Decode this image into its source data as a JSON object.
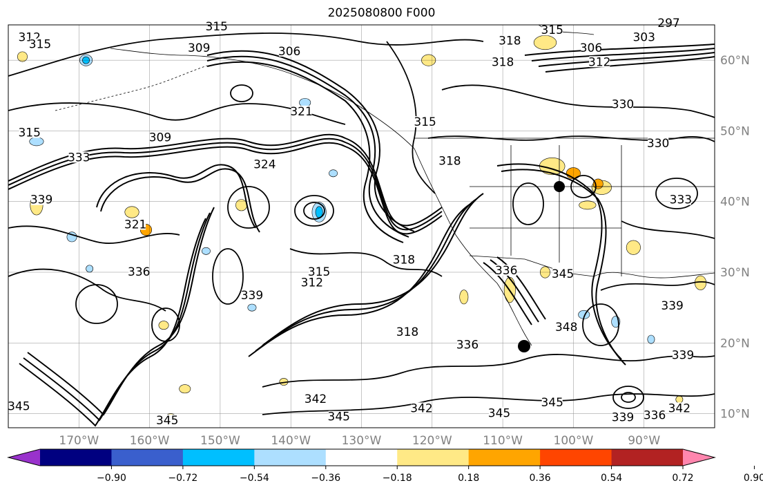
{
  "title": "2025080800 F000",
  "map": {
    "extent": {
      "lon": [
        -180,
        -80
      ],
      "lat": [
        8,
        65
      ]
    },
    "grid": true,
    "lat_labels": [
      "60°N",
      "50°N",
      "40°N",
      "30°N",
      "20°N",
      "10°N"
    ],
    "lat_values": [
      60,
      50,
      40,
      30,
      20,
      10
    ],
    "lon_labels": [
      "170°W",
      "160°W",
      "150°W",
      "140°W",
      "130°W",
      "120°W",
      "110°W",
      "100°W",
      "90°W"
    ],
    "lon_values": [
      -170,
      -160,
      -150,
      -140,
      -130,
      -120,
      -110,
      -100,
      -90
    ],
    "contour_labels": [
      {
        "text": "312",
        "lon": -177.0,
        "lat": 63.0
      },
      {
        "text": "315",
        "lon": -175.5,
        "lat": 62.0
      },
      {
        "text": "315",
        "lon": -150.5,
        "lat": 64.5
      },
      {
        "text": "309",
        "lon": -153.0,
        "lat": 61.5
      },
      {
        "text": "306",
        "lon": -140.2,
        "lat": 61.0
      },
      {
        "text": "321",
        "lon": -138.5,
        "lat": 52.5
      },
      {
        "text": "309",
        "lon": -158.5,
        "lat": 48.8
      },
      {
        "text": "315",
        "lon": -177.0,
        "lat": 49.5
      },
      {
        "text": "333",
        "lon": -170.0,
        "lat": 46.0
      },
      {
        "text": "324",
        "lon": -143.7,
        "lat": 45.0
      },
      {
        "text": "339",
        "lon": -175.3,
        "lat": 40.0
      },
      {
        "text": "321",
        "lon": -162.0,
        "lat": 36.5
      },
      {
        "text": "336",
        "lon": -161.5,
        "lat": 29.8
      },
      {
        "text": "339",
        "lon": -145.5,
        "lat": 26.5
      },
      {
        "text": "315",
        "lon": -136.0,
        "lat": 29.8
      },
      {
        "text": "312",
        "lon": -137.0,
        "lat": 28.3
      },
      {
        "text": "318",
        "lon": -124.0,
        "lat": 31.5
      },
      {
        "text": "318",
        "lon": -123.5,
        "lat": 21.3
      },
      {
        "text": "336",
        "lon": -115.0,
        "lat": 19.5
      },
      {
        "text": "342",
        "lon": -136.5,
        "lat": 11.8
      },
      {
        "text": "345",
        "lon": -133.2,
        "lat": 9.3
      },
      {
        "text": "342",
        "lon": -121.5,
        "lat": 10.5
      },
      {
        "text": "345",
        "lon": -110.5,
        "lat": 9.8
      },
      {
        "text": "345",
        "lon": -178.5,
        "lat": 10.8
      },
      {
        "text": "345",
        "lon": -157.5,
        "lat": 8.8
      },
      {
        "text": "345",
        "lon": -103.0,
        "lat": 11.3
      },
      {
        "text": "348",
        "lon": -101.0,
        "lat": 22.0
      },
      {
        "text": "336",
        "lon": -109.5,
        "lat": 30.0
      },
      {
        "text": "345",
        "lon": -101.5,
        "lat": 29.5
      },
      {
        "text": "318",
        "lon": -117.5,
        "lat": 45.5
      },
      {
        "text": "315",
        "lon": -121.0,
        "lat": 51.0
      },
      {
        "text": "318",
        "lon": -109.0,
        "lat": 62.5
      },
      {
        "text": "318",
        "lon": -110.0,
        "lat": 59.5
      },
      {
        "text": "315",
        "lon": -103.0,
        "lat": 64.0
      },
      {
        "text": "306",
        "lon": -97.5,
        "lat": 61.5
      },
      {
        "text": "312",
        "lon": -96.3,
        "lat": 59.5
      },
      {
        "text": "303",
        "lon": -90.0,
        "lat": 63.0
      },
      {
        "text": "297",
        "lon": -86.5,
        "lat": 65.0
      },
      {
        "text": "330",
        "lon": -93.0,
        "lat": 53.5
      },
      {
        "text": "330",
        "lon": -88.0,
        "lat": 48.0
      },
      {
        "text": "333",
        "lon": -84.8,
        "lat": 40.0
      },
      {
        "text": "339",
        "lon": -86.0,
        "lat": 25.0
      },
      {
        "text": "339",
        "lon": -84.5,
        "lat": 18.0
      },
      {
        "text": "342",
        "lon": -85.0,
        "lat": 10.5
      },
      {
        "text": "336",
        "lon": -88.5,
        "lat": 9.5
      },
      {
        "text": "339",
        "lon": -93.0,
        "lat": 9.2
      }
    ],
    "filled_patches": [
      {
        "level": "pos-light",
        "lon": -120.5,
        "lat": 60.0,
        "rx": 10,
        "ry": 8
      },
      {
        "level": "pos-light",
        "lon": -104.0,
        "lat": 62.5,
        "rx": 16,
        "ry": 10
      },
      {
        "level": "pos-light",
        "lon": -178.0,
        "lat": 60.5,
        "rx": 7,
        "ry": 7
      },
      {
        "level": "pos-light",
        "lon": -176.0,
        "lat": 39.5,
        "rx": 9,
        "ry": 14
      },
      {
        "level": "pos-light",
        "lon": -162.5,
        "lat": 38.5,
        "rx": 10,
        "ry": 8
      },
      {
        "level": "pos-mid",
        "lon": -160.5,
        "lat": 36.0,
        "rx": 8,
        "ry": 8
      },
      {
        "level": "neg-light",
        "lon": -171.0,
        "lat": 35.0,
        "rx": 7,
        "ry": 7
      },
      {
        "level": "neg-light",
        "lon": -136.0,
        "lat": 38.5,
        "rx": 10,
        "ry": 14
      },
      {
        "level": "neg-mid",
        "lon": -136.0,
        "lat": 38.5,
        "rx": 5,
        "ry": 8
      },
      {
        "level": "neg-light",
        "lon": -176.0,
        "lat": 48.5,
        "rx": 10,
        "ry": 6
      },
      {
        "level": "neg-light",
        "lon": -169.0,
        "lat": 60.0,
        "rx": 9,
        "ry": 8
      },
      {
        "level": "neg-mid",
        "lon": -169.0,
        "lat": 60.0,
        "rx": 5,
        "ry": 5
      },
      {
        "level": "neg-light",
        "lon": -138.0,
        "lat": 54.0,
        "rx": 8,
        "ry": 6
      },
      {
        "level": "neg-light",
        "lon": -134.0,
        "lat": 44.0,
        "rx": 6,
        "ry": 5
      },
      {
        "level": "pos-light",
        "lon": -147.0,
        "lat": 39.5,
        "rx": 8,
        "ry": 8
      },
      {
        "level": "pos-light",
        "lon": -103.0,
        "lat": 45.0,
        "rx": 18,
        "ry": 12
      },
      {
        "level": "pos-mid",
        "lon": -100.0,
        "lat": 44.0,
        "rx": 10,
        "ry": 8
      },
      {
        "level": "pos-light",
        "lon": -96.0,
        "lat": 42.0,
        "rx": 14,
        "ry": 10
      },
      {
        "level": "pos-mid",
        "lon": -96.5,
        "lat": 42.5,
        "rx": 7,
        "ry": 7
      },
      {
        "level": "pos-light",
        "lon": -98.0,
        "lat": 39.5,
        "rx": 12,
        "ry": 6
      },
      {
        "level": "pos-light",
        "lon": -109.0,
        "lat": 27.5,
        "rx": 8,
        "ry": 18
      },
      {
        "level": "pos-light",
        "lon": -115.5,
        "lat": 26.5,
        "rx": 6,
        "ry": 10
      },
      {
        "level": "pos-light",
        "lon": -104.0,
        "lat": 30.0,
        "rx": 7,
        "ry": 8
      },
      {
        "level": "pos-light",
        "lon": -91.5,
        "lat": 33.5,
        "rx": 10,
        "ry": 10
      },
      {
        "level": "pos-light",
        "lon": -82.0,
        "lat": 28.5,
        "rx": 8,
        "ry": 10
      },
      {
        "level": "neg-light",
        "lon": -98.5,
        "lat": 24.0,
        "rx": 8,
        "ry": 6
      },
      {
        "level": "neg-light",
        "lon": -94.0,
        "lat": 23.0,
        "rx": 6,
        "ry": 8
      },
      {
        "level": "neg-light",
        "lon": -89.0,
        "lat": 20.5,
        "rx": 5,
        "ry": 6
      },
      {
        "level": "pos-light",
        "lon": -158.0,
        "lat": 22.5,
        "rx": 7,
        "ry": 6
      },
      {
        "level": "pos-light",
        "lon": -155.0,
        "lat": 13.5,
        "rx": 8,
        "ry": 6
      },
      {
        "level": "pos-light",
        "lon": -141.0,
        "lat": 14.5,
        "rx": 6,
        "ry": 5
      },
      {
        "level": "neg-light",
        "lon": -145.5,
        "lat": 25.0,
        "rx": 6,
        "ry": 5
      },
      {
        "level": "neg-light",
        "lon": -152.0,
        "lat": 33.0,
        "rx": 6,
        "ry": 5
      },
      {
        "level": "neg-light",
        "lon": -168.5,
        "lat": 30.5,
        "rx": 5,
        "ry": 5
      },
      {
        "level": "pos-light",
        "lon": -157.0,
        "lat": 9.5,
        "rx": 7,
        "ry": 5
      },
      {
        "level": "pos-light",
        "lon": -85.0,
        "lat": 12.0,
        "rx": 5,
        "ry": 5
      }
    ]
  },
  "colorbar": {
    "colors": [
      "#9932CC",
      "#000080",
      "#3A5FCD",
      "#00BFFF",
      "#ADDFFF",
      "#FFFFFF",
      "#FFE986",
      "#FFA500",
      "#FF4500",
      "#B22222",
      "#FF86AE"
    ],
    "tick_labels": [
      "−0.90",
      "−0.72",
      "−0.54",
      "−0.36",
      "−0.18",
      "0.18",
      "0.36",
      "0.54",
      "0.72",
      "0.90"
    ]
  }
}
